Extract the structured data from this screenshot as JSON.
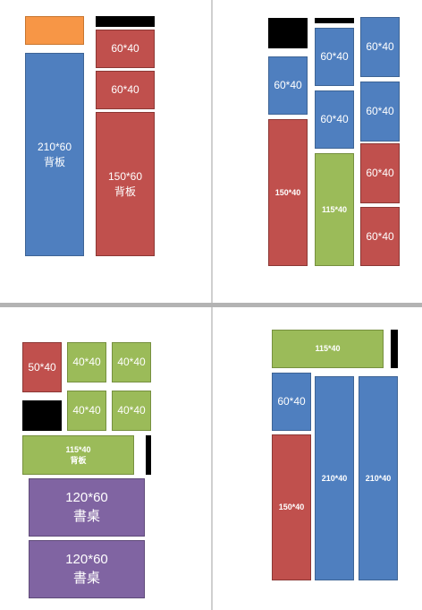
{
  "q1": {
    "back_210x60": {
      "size": "210*60",
      "label": "背板"
    },
    "b_60x40_a": {
      "size": "60*40"
    },
    "b_60x40_b": {
      "size": "60*40"
    },
    "back_150x60": {
      "size": "150*60",
      "label": "背板"
    }
  },
  "q2": {
    "blue_left": {
      "size": "60*40"
    },
    "red_left": {
      "size": "150*40"
    },
    "blue_mid_1": {
      "size": "60*40"
    },
    "blue_mid_2": {
      "size": "60*40"
    },
    "green_mid": {
      "size": "115*40"
    },
    "blue_right_1": {
      "size": "60*40"
    },
    "blue_right_2": {
      "size": "60*40"
    },
    "red_right_1": {
      "size": "60*40"
    },
    "red_right_2": {
      "size": "60*40"
    }
  },
  "q3": {
    "red_50x40": {
      "size": "50*40"
    },
    "green_1": {
      "size": "40*40"
    },
    "green_2": {
      "size": "40*40"
    },
    "green_3": {
      "size": "40*40"
    },
    "green_4": {
      "size": "40*40"
    },
    "green_back": {
      "size": "115*40",
      "label": "背板"
    },
    "desk_1": {
      "size": "120*60",
      "label": "書桌"
    },
    "desk_2": {
      "size": "120*60",
      "label": "書桌"
    }
  },
  "q4": {
    "green_top": {
      "size": "115*40"
    },
    "blue_small": {
      "size": "60*40"
    },
    "red_tall": {
      "size": "150*40"
    },
    "blue_tall_1": {
      "size": "210*40"
    },
    "blue_tall_2": {
      "size": "210*40"
    }
  },
  "colors": {
    "blue": "#4f7fbf",
    "red": "#c0504d",
    "green": "#9bbb59",
    "purple": "#8064a2",
    "orange": "#f79646",
    "black": "#000000"
  }
}
